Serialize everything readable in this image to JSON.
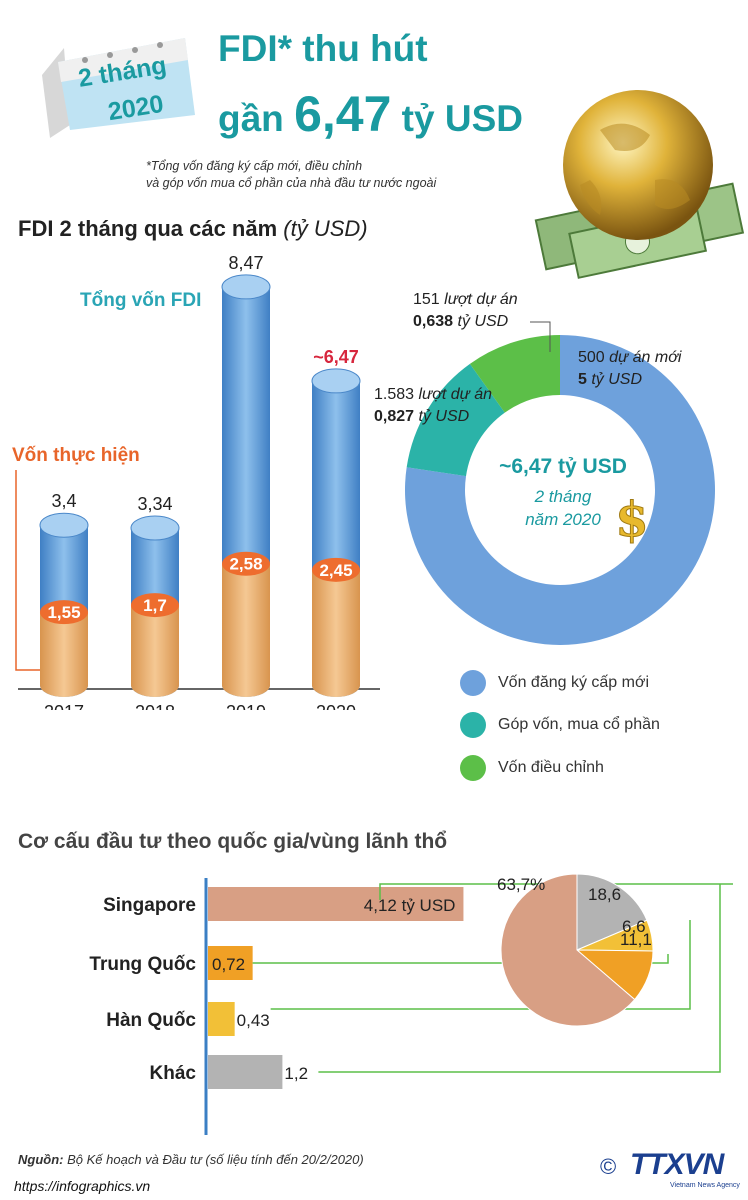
{
  "header": {
    "calendar_line1": "2 tháng",
    "calendar_line2": "2020",
    "title_line1": "FDI* thu hút",
    "title_prefix": "gần",
    "title_value": "6,47",
    "title_suffix": "tỷ USD",
    "note_line1": "*Tổng vốn đăng ký cấp mới, điều chỉnh",
    "note_line2": "và góp vốn mua cổ phần của nhà đầu tư nước ngoài"
  },
  "section1": {
    "title": "FDI 2 tháng qua các năm",
    "unit": "(tỷ USD)",
    "total_label": "Tổng vốn FDI",
    "implemented_label": "Vốn thực hiện"
  },
  "section2": {
    "title": "Cơ cấu đầu tư theo quốc gia/vùng lãnh thổ"
  },
  "chart_data": [
    {
      "type": "bar",
      "categories": [
        "2017",
        "2018",
        "2019",
        "2020"
      ],
      "series": [
        {
          "name": "Tổng vốn FDI",
          "values": [
            3.4,
            3.34,
            8.47,
            6.47
          ],
          "labels": [
            "3,4",
            "3,34",
            "8,47",
            "~6,47"
          ]
        },
        {
          "name": "Vốn thực hiện",
          "values": [
            1.55,
            1.7,
            2.58,
            2.45
          ],
          "labels": [
            "1,55",
            "1,7",
            "2,58",
            "2,45"
          ]
        }
      ],
      "colors": {
        "total": "#5b9bd5",
        "implemented": "#e8a563",
        "highlight": "#d7263d"
      }
    },
    {
      "type": "pie",
      "donut": true,
      "center_value": "~6,47 tỷ USD",
      "center_line2": "2 tháng",
      "center_line3": "năm 2020",
      "slices": [
        {
          "name": "Vốn đăng ký cấp mới",
          "value": 5,
          "count_num": "500",
          "count_text": "dự án mới",
          "value_num": "5",
          "value_text": "tỷ USD",
          "color": "#6ea1dc"
        },
        {
          "name": "Góp vốn, mua cổ phần",
          "value": 0.827,
          "count_num": "1.583",
          "count_text": "lượt dự án",
          "value_num": "0,827",
          "value_text": "tỷ USD",
          "color": "#2bb3a8"
        },
        {
          "name": "Vốn điều chỉnh",
          "value": 0.638,
          "count_num": "151",
          "count_text": "lượt dự án",
          "value_num": "0,638",
          "value_text": "tỷ USD",
          "color": "#5cbf48"
        }
      ]
    },
    {
      "type": "bar",
      "orientation": "horizontal",
      "categories": [
        "Singapore",
        "Trung Quốc",
        "Hàn Quốc",
        "Khác"
      ],
      "values": [
        4.12,
        0.72,
        0.43,
        1.2
      ],
      "labels": [
        "4,12 tỷ USD",
        "0,72",
        "0,43",
        "1,2"
      ],
      "colors": [
        "#d89f84",
        "#f0a025",
        "#f2c037",
        "#b3b3b3"
      ]
    },
    {
      "type": "pie",
      "slices": [
        {
          "name": "Singapore",
          "value": 63.7,
          "label": "63,7%",
          "color": "#d89f84"
        },
        {
          "name": "Trung Quốc",
          "value": 11.1,
          "label": "11,1",
          "color": "#f0a025"
        },
        {
          "name": "Hàn Quốc",
          "value": 6.6,
          "label": "6,6",
          "color": "#f2c037"
        },
        {
          "name": "Khác",
          "value": 18.6,
          "label": "18,6",
          "color": "#b3b3b3"
        }
      ]
    }
  ],
  "legend": [
    {
      "label": "Vốn đăng ký cấp mới",
      "color": "#6ea1dc"
    },
    {
      "label": "Góp vốn, mua cổ phần",
      "color": "#2bb3a8"
    },
    {
      "label": "Vốn điều chỉnh",
      "color": "#5cbf48"
    }
  ],
  "footer": {
    "source_label": "Nguồn:",
    "source_text": "Bộ Kế hoạch và Đầu tư (số liệu tính đến 20/2/2020)",
    "url": "https://infographics.vn",
    "logo": "TTXVN",
    "logo_sub": "Vietnam News Agency",
    "copyright": "©"
  }
}
